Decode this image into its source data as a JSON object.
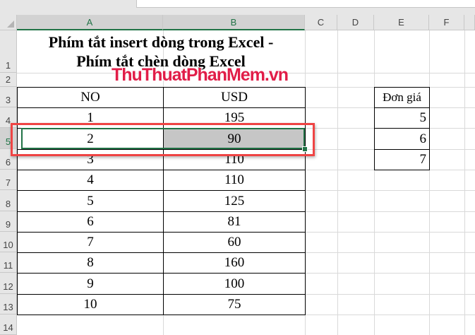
{
  "columns": [
    "A",
    "B",
    "C",
    "D",
    "E",
    "F"
  ],
  "rows": [
    "1",
    "2",
    "3",
    "4",
    "5",
    "6",
    "7",
    "8",
    "9",
    "10",
    "11",
    "12",
    "13",
    "14"
  ],
  "title_line1": "Phím tắt insert dòng trong Excel -",
  "title_line2": "Phím tắt chèn dòng Excel",
  "watermark": "ThuThuatPhanMem.vn",
  "table": {
    "headers": [
      "NO",
      "USD"
    ],
    "rows": [
      [
        "1",
        "195"
      ],
      [
        "2",
        "90"
      ],
      [
        "3",
        "110"
      ],
      [
        "4",
        "110"
      ],
      [
        "5",
        "125"
      ],
      [
        "6",
        "81"
      ],
      [
        "7",
        "60"
      ],
      [
        "8",
        "160"
      ],
      [
        "9",
        "100"
      ],
      [
        "10",
        "75"
      ]
    ]
  },
  "price": {
    "header": "Đơn giá",
    "values": [
      "5",
      "6",
      "7"
    ]
  },
  "selected_row": "5",
  "colors": {
    "selection": "#217346",
    "highlight": "#ef4444",
    "selected_fill": "#c6c6c6"
  }
}
